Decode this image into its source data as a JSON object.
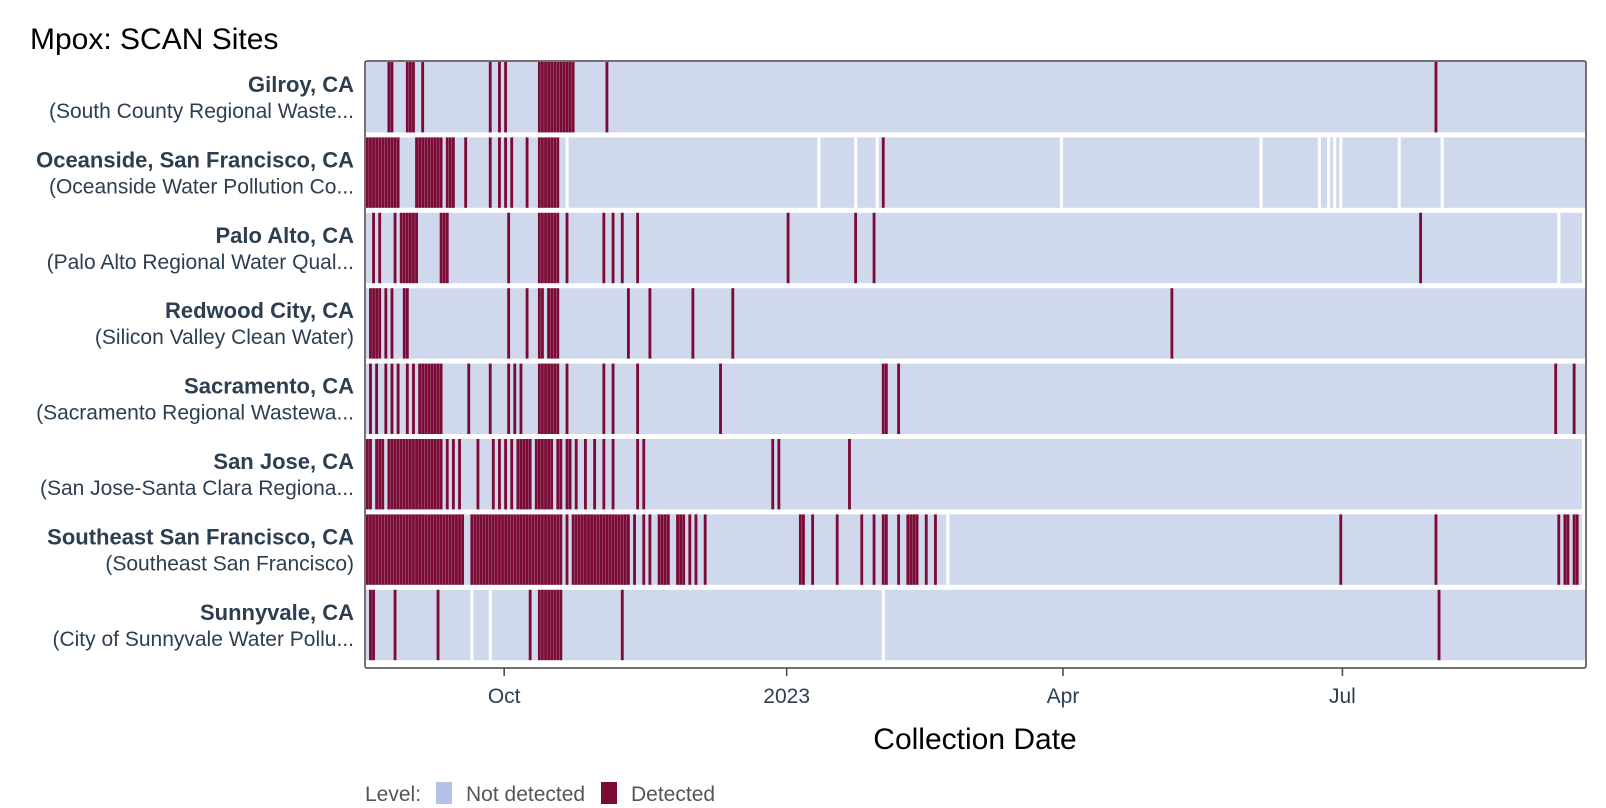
{
  "chart_data": {
    "type": "heatmap",
    "title": "Mpox: SCAN Sites",
    "xlabel": "Collection Date",
    "x_range": [
      "2022-08-17",
      "2023-09-17"
    ],
    "x_ticks": [
      {
        "date": "2022-10-01",
        "label": "Oct"
      },
      {
        "date": "2023-01-01",
        "label": "2023"
      },
      {
        "date": "2023-04-01",
        "label": "Apr"
      },
      {
        "date": "2023-07-01",
        "label": "Jul"
      }
    ],
    "legend": {
      "title": "Level:",
      "placement": "bottom",
      "items": [
        {
          "label": "Not detected",
          "color": "#b4c1e6"
        },
        {
          "label": "Detected",
          "color": "#7b0a35"
        }
      ]
    },
    "colors": {
      "not_detected_fill": "#d0d8ee",
      "detected": "#7b0a35",
      "frame": "#444444"
    },
    "sites": [
      {
        "name": "Gilroy, CA",
        "sub": "(South County Regional Waste...",
        "last_date": "2023-09-17",
        "gaps": [],
        "detected": [
          "2022-08-24",
          "2022-08-25",
          "2022-08-30",
          "2022-08-31",
          "2022-09-01",
          "2022-09-04",
          "2022-09-26",
          "2022-09-29",
          "2022-10-01",
          "2022-10-12",
          "2022-10-13",
          "2022-10-14",
          "2022-10-15",
          "2022-10-16",
          "2022-10-17",
          "2022-10-18",
          "2022-10-19",
          "2022-10-20",
          "2022-10-21",
          "2022-10-22",
          "2022-10-23",
          "2022-11-03",
          "2023-07-31"
        ]
      },
      {
        "name": "Oceanside, San Francisco, CA",
        "sub": "(Oceanside Water Pollution Co...",
        "last_date": "2023-09-17",
        "gaps": [
          "2022-10-21",
          "2023-01-11",
          "2023-01-23",
          "2023-01-30",
          "2023-03-31",
          "2023-06-04",
          "2023-06-23",
          "2023-06-26",
          "2023-06-28",
          "2023-06-30",
          "2023-07-19",
          "2023-08-02"
        ],
        "detected": [
          "2022-08-17",
          "2022-08-18",
          "2022-08-19",
          "2022-08-20",
          "2022-08-21",
          "2022-08-22",
          "2022-08-23",
          "2022-08-24",
          "2022-08-25",
          "2022-08-26",
          "2022-08-27",
          "2022-09-02",
          "2022-09-03",
          "2022-09-04",
          "2022-09-05",
          "2022-09-06",
          "2022-09-07",
          "2022-09-08",
          "2022-09-09",
          "2022-09-10",
          "2022-09-12",
          "2022-09-13",
          "2022-09-14",
          "2022-09-18",
          "2022-09-26",
          "2022-09-29",
          "2022-10-01",
          "2022-10-03",
          "2022-10-08",
          "2022-10-12",
          "2022-10-13",
          "2022-10-14",
          "2022-10-15",
          "2022-10-16",
          "2022-10-17",
          "2022-10-18",
          "2023-02-01"
        ]
      },
      {
        "name": "Palo Alto, CA",
        "sub": "(Palo Alto Regional Water Qual...",
        "last_date": "2023-09-16",
        "gaps": [
          "2023-09-09"
        ],
        "detected": [
          "2022-08-19",
          "2022-08-21",
          "2022-08-26",
          "2022-08-28",
          "2022-08-29",
          "2022-08-30",
          "2022-08-31",
          "2022-09-01",
          "2022-09-02",
          "2022-09-10",
          "2022-09-11",
          "2022-09-12",
          "2022-10-02",
          "2022-10-12",
          "2022-10-13",
          "2022-10-14",
          "2022-10-15",
          "2022-10-16",
          "2022-10-17",
          "2022-10-18",
          "2022-10-21",
          "2022-11-02",
          "2022-11-05",
          "2022-11-08",
          "2022-11-13",
          "2023-01-01",
          "2023-01-23",
          "2023-01-29",
          "2023-07-26"
        ]
      },
      {
        "name": "Redwood City, CA",
        "sub": "(Silicon Valley Clean Water)",
        "last_date": "2023-09-17",
        "gaps": [],
        "detected": [
          "2022-08-18",
          "2022-08-19",
          "2022-08-20",
          "2022-08-21",
          "2022-08-23",
          "2022-08-25",
          "2022-08-29",
          "2022-08-30",
          "2022-10-02",
          "2022-10-08",
          "2022-10-12",
          "2022-10-13",
          "2022-10-15",
          "2022-10-16",
          "2022-10-17",
          "2022-10-18",
          "2022-11-10",
          "2022-11-17",
          "2022-12-01",
          "2022-12-14",
          "2023-05-06"
        ]
      },
      {
        "name": "Sacramento, CA",
        "sub": "(Sacramento Regional Wastewa...",
        "last_date": "2023-09-17",
        "gaps": [],
        "detected": [
          "2022-08-18",
          "2022-08-20",
          "2022-08-23",
          "2022-08-25",
          "2022-08-27",
          "2022-08-30",
          "2022-09-01",
          "2022-09-03",
          "2022-09-04",
          "2022-09-05",
          "2022-09-06",
          "2022-09-07",
          "2022-09-08",
          "2022-09-09",
          "2022-09-10",
          "2022-09-19",
          "2022-09-26",
          "2022-10-02",
          "2022-10-04",
          "2022-10-06",
          "2022-10-12",
          "2022-10-13",
          "2022-10-14",
          "2022-10-15",
          "2022-10-16",
          "2022-10-17",
          "2022-10-18",
          "2022-10-21",
          "2022-11-02",
          "2022-11-05",
          "2022-11-13",
          "2022-12-10",
          "2023-02-01",
          "2023-02-02",
          "2023-02-06",
          "2023-09-08",
          "2023-09-14"
        ]
      },
      {
        "name": "San Jose, CA",
        "sub": "(San Jose-Santa Clara Regiona...",
        "last_date": "2023-09-16",
        "gaps": [],
        "detected": [
          "2022-08-17",
          "2022-08-18",
          "2022-08-20",
          "2022-08-21",
          "2022-08-22",
          "2022-08-24",
          "2022-08-25",
          "2022-08-26",
          "2022-08-27",
          "2022-08-28",
          "2022-08-29",
          "2022-08-30",
          "2022-08-31",
          "2022-09-01",
          "2022-09-02",
          "2022-09-03",
          "2022-09-04",
          "2022-09-05",
          "2022-09-06",
          "2022-09-07",
          "2022-09-08",
          "2022-09-09",
          "2022-09-10",
          "2022-09-12",
          "2022-09-14",
          "2022-09-16",
          "2022-09-22",
          "2022-09-27",
          "2022-09-29",
          "2022-10-01",
          "2022-10-03",
          "2022-10-05",
          "2022-10-06",
          "2022-10-07",
          "2022-10-08",
          "2022-10-09",
          "2022-10-11",
          "2022-10-12",
          "2022-10-13",
          "2022-10-14",
          "2022-10-15",
          "2022-10-16",
          "2022-10-18",
          "2022-10-19",
          "2022-10-21",
          "2022-10-22",
          "2022-10-24",
          "2022-10-27",
          "2022-10-30",
          "2022-11-02",
          "2022-11-05",
          "2022-11-13",
          "2022-11-15",
          "2022-12-27",
          "2022-12-29",
          "2023-01-21"
        ]
      },
      {
        "name": "Southeast San Francisco, CA",
        "sub": "(Southeast San Francisco)",
        "last_date": "2023-09-16",
        "gaps": [
          "2023-02-22"
        ],
        "detected": [
          "2022-08-17",
          "2022-08-18",
          "2022-08-19",
          "2022-08-20",
          "2022-08-21",
          "2022-08-22",
          "2022-08-23",
          "2022-08-24",
          "2022-08-25",
          "2022-08-26",
          "2022-08-27",
          "2022-08-28",
          "2022-08-29",
          "2022-08-30",
          "2022-08-31",
          "2022-09-01",
          "2022-09-02",
          "2022-09-03",
          "2022-09-04",
          "2022-09-05",
          "2022-09-06",
          "2022-09-07",
          "2022-09-08",
          "2022-09-09",
          "2022-09-10",
          "2022-09-11",
          "2022-09-12",
          "2022-09-13",
          "2022-09-14",
          "2022-09-15",
          "2022-09-16",
          "2022-09-17",
          "2022-09-20",
          "2022-09-21",
          "2022-09-22",
          "2022-09-23",
          "2022-09-24",
          "2022-09-25",
          "2022-09-26",
          "2022-09-27",
          "2022-09-28",
          "2022-09-29",
          "2022-09-30",
          "2022-10-01",
          "2022-10-02",
          "2022-10-03",
          "2022-10-04",
          "2022-10-05",
          "2022-10-06",
          "2022-10-07",
          "2022-10-08",
          "2022-10-09",
          "2022-10-10",
          "2022-10-11",
          "2022-10-12",
          "2022-10-13",
          "2022-10-14",
          "2022-10-15",
          "2022-10-16",
          "2022-10-17",
          "2022-10-18",
          "2022-10-19",
          "2022-10-21",
          "2022-10-23",
          "2022-10-24",
          "2022-10-25",
          "2022-10-26",
          "2022-10-27",
          "2022-10-28",
          "2022-10-29",
          "2022-10-30",
          "2022-10-31",
          "2022-11-01",
          "2022-11-02",
          "2022-11-03",
          "2022-11-04",
          "2022-11-05",
          "2022-11-06",
          "2022-11-07",
          "2022-11-08",
          "2022-11-09",
          "2022-11-10",
          "2022-11-12",
          "2022-11-15",
          "2022-11-17",
          "2022-11-20",
          "2022-11-21",
          "2022-11-22",
          "2022-11-23",
          "2022-11-26",
          "2022-11-27",
          "2022-11-28",
          "2022-11-30",
          "2022-12-02",
          "2022-12-05",
          "2023-01-05",
          "2023-01-06",
          "2023-01-09",
          "2023-01-17",
          "2023-01-25",
          "2023-01-29",
          "2023-02-01",
          "2023-02-02",
          "2023-02-06",
          "2023-02-09",
          "2023-02-10",
          "2023-02-11",
          "2023-02-12",
          "2023-02-15",
          "2023-02-18",
          "2023-06-30",
          "2023-07-31",
          "2023-09-09",
          "2023-09-11",
          "2023-09-12",
          "2023-09-14",
          "2023-09-15"
        ]
      },
      {
        "name": "Sunnyvale, CA",
        "sub": "(City of Sunnyvale Water Pollu...",
        "last_date": "2023-09-17",
        "gaps": [
          "2022-09-20",
          "2022-09-26",
          "2023-02-01"
        ],
        "detected": [
          "2022-08-18",
          "2022-08-19",
          "2022-08-26",
          "2022-09-09",
          "2022-10-09",
          "2022-10-12",
          "2022-10-13",
          "2022-10-14",
          "2022-10-15",
          "2022-10-16",
          "2022-10-17",
          "2022-10-18",
          "2022-10-19",
          "2022-11-08",
          "2023-08-01"
        ]
      }
    ]
  }
}
